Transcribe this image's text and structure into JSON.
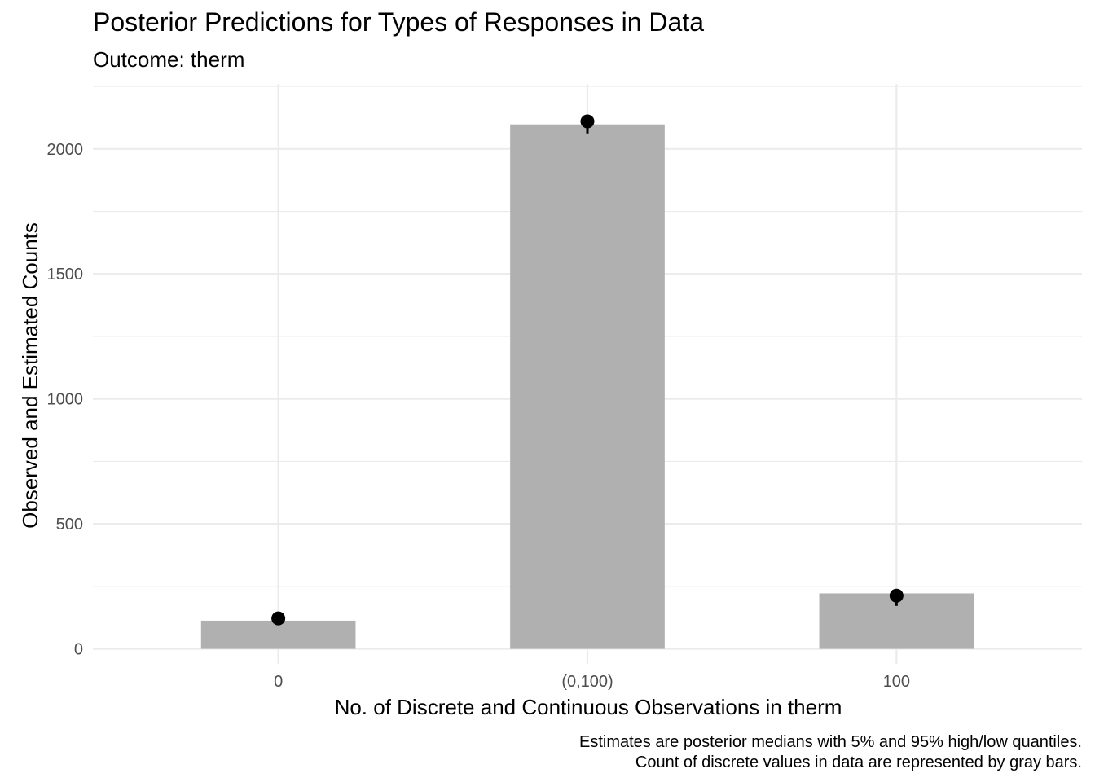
{
  "chart_data": {
    "type": "bar",
    "title": "Posterior Predictions for Types of Responses in Data",
    "subtitle": "Outcome: therm",
    "xlabel": "No. of Discrete and Continuous Observations in therm",
    "ylabel": "Observed and Estimated Counts",
    "categories": [
      "0",
      "(0,100)",
      "100"
    ],
    "series": [
      {
        "type": "bar",
        "color": "#b0b0b0",
        "values": [
          113,
          2098,
          222
        ]
      },
      {
        "type": "point",
        "color": "#000000",
        "median": [
          122,
          2110,
          213
        ],
        "low": [
          113,
          2062,
          172
        ],
        "high": [
          130,
          2122,
          228
        ]
      }
    ],
    "ylim": [
      -60,
      2260
    ],
    "yticks": [
      0,
      500,
      1000,
      1500,
      2000
    ],
    "ytick_labels": [
      "0",
      "500",
      "1000",
      "1500",
      "2000"
    ],
    "grid": true,
    "caption": [
      "Estimates are posterior medians with 5% and 95% high/low quantiles.",
      "Count of discrete values in data are represented by gray bars."
    ]
  }
}
